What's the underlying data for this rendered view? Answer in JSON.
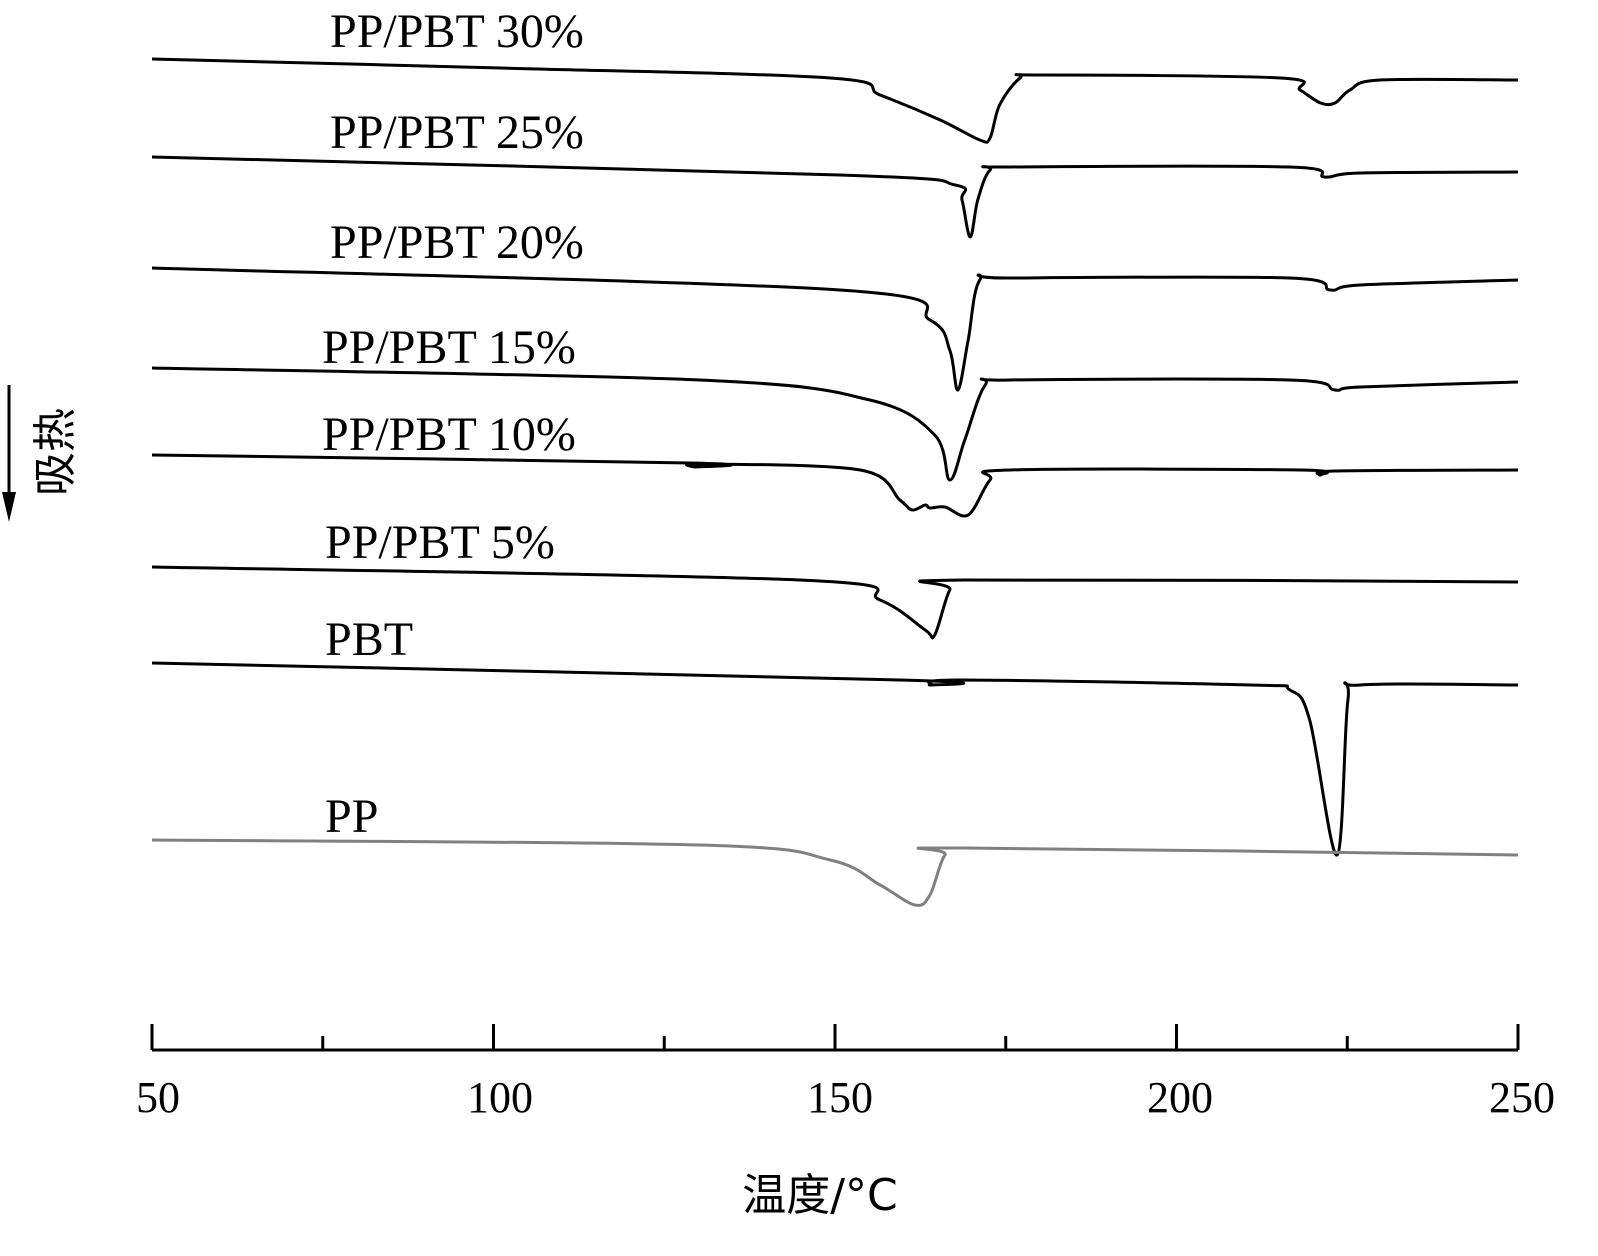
{
  "chart_data": {
    "type": "line",
    "title": "",
    "xlabel": "温度/°C",
    "ylabel": "吸热",
    "ylabel_arrow": "down",
    "xlim": [
      50,
      250
    ],
    "xticks": [
      50,
      100,
      150,
      200,
      250
    ],
    "xminor_ticks": [
      75,
      125,
      175,
      225
    ],
    "grid": false,
    "y_units": "arbitrary heat flow (curves offset vertically, endotherm down)",
    "series": [
      {
        "name": "PP/PBT 30%",
        "color": "#000000",
        "points": [
          [
            50,
            104.1
          ],
          [
            101,
            103.2
          ],
          [
            149.3,
            102.2
          ],
          [
            156.6,
            100.5
          ],
          [
            165.4,
            98
          ],
          [
            171.2,
            96
          ],
          [
            172.7,
            96.2
          ],
          [
            174.1,
            99.5
          ],
          [
            177.1,
            102.2
          ],
          [
            180,
            102.5
          ],
          [
            215.2,
            102.2
          ],
          [
            218.1,
            101
          ],
          [
            221.1,
            99.7
          ],
          [
            223.2,
            99.7
          ],
          [
            225.4,
            101
          ],
          [
            229.8,
            102
          ],
          [
            250,
            102
          ]
        ]
      },
      {
        "name": "PP/PBT 25%",
        "color": "#000000",
        "points": [
          [
            50,
            94.3
          ],
          [
            150.7,
            92.5
          ],
          [
            167.6,
            91.5
          ],
          [
            168.6,
            90
          ],
          [
            169.8,
            86.3
          ],
          [
            170.9,
            90
          ],
          [
            172.7,
            93
          ],
          [
            175.6,
            93.3
          ],
          [
            216.6,
            93.3
          ],
          [
            221.7,
            92.3
          ],
          [
            226.9,
            92.7
          ],
          [
            250,
            92.8
          ]
        ]
      },
      {
        "name": "PP/PBT 20%",
        "color": "#000000",
        "points": [
          [
            50,
            83.2
          ],
          [
            150.7,
            81
          ],
          [
            163.9,
            78
          ],
          [
            166.8,
            75
          ],
          [
            168,
            71
          ],
          [
            169.5,
            76
          ],
          [
            171.2,
            82
          ],
          [
            175.6,
            82.2
          ],
          [
            216.6,
            82.2
          ],
          [
            222.5,
            81
          ],
          [
            226.9,
            81.5
          ],
          [
            250,
            82
          ]
        ]
      },
      {
        "name": "PP/PBT 15%",
        "color": "#000000",
        "points": [
          [
            50,
            73.2
          ],
          [
            130.2,
            72
          ],
          [
            155.1,
            70
          ],
          [
            164.6,
            66.5
          ],
          [
            166.8,
            62
          ],
          [
            169,
            66
          ],
          [
            172,
            71.5
          ],
          [
            175.6,
            72
          ],
          [
            216.6,
            72
          ],
          [
            223.2,
            71
          ],
          [
            226.9,
            71.3
          ],
          [
            250,
            71.8
          ]
        ]
      },
      {
        "name": "PP/PBT 10%",
        "color": "#000000",
        "points": [
          [
            50,
            64.5
          ],
          [
            128.8,
            63.7
          ],
          [
            129.5,
            63.3
          ],
          [
            130.2,
            63.6
          ],
          [
            153.7,
            63
          ],
          [
            159.5,
            60
          ],
          [
            161.3,
            59
          ],
          [
            163.2,
            59.5
          ],
          [
            163.9,
            59.2
          ],
          [
            166.1,
            59.3
          ],
          [
            169.5,
            58.5
          ],
          [
            172.7,
            62
          ],
          [
            175.6,
            63
          ],
          [
            218.1,
            63
          ],
          [
            221,
            62.5
          ],
          [
            223.2,
            62.9
          ],
          [
            250,
            63
          ]
        ]
      },
      {
        "name": "PP/PBT 5%",
        "color": "#000000",
        "points": [
          [
            50,
            53.3
          ],
          [
            144.9,
            52
          ],
          [
            156.6,
            50
          ],
          [
            163.2,
            47
          ],
          [
            164.6,
            46.5
          ],
          [
            166.8,
            51
          ],
          [
            169,
            52
          ],
          [
            250,
            51.8
          ]
        ]
      },
      {
        "name": "PBT",
        "color": "#000000",
        "points": [
          [
            50,
            43.7
          ],
          [
            159.5,
            42
          ],
          [
            163.9,
            41.5
          ],
          [
            168.3,
            42
          ],
          [
            210.8,
            41.5
          ],
          [
            216.6,
            41
          ],
          [
            219.5,
            38
          ],
          [
            223.5,
            24.5
          ],
          [
            225.1,
            40
          ],
          [
            226.9,
            41.5
          ],
          [
            250,
            41.5
          ]
        ]
      },
      {
        "name": "PP",
        "color": "#808080",
        "points": [
          [
            50,
            26
          ],
          [
            130.2,
            25.5
          ],
          [
            149.3,
            24
          ],
          [
            156.6,
            21.5
          ],
          [
            161.7,
            19.5
          ],
          [
            163.9,
            20.5
          ],
          [
            166.1,
            24.5
          ],
          [
            169,
            25.2
          ],
          [
            250,
            24.5
          ]
        ]
      }
    ]
  }
}
